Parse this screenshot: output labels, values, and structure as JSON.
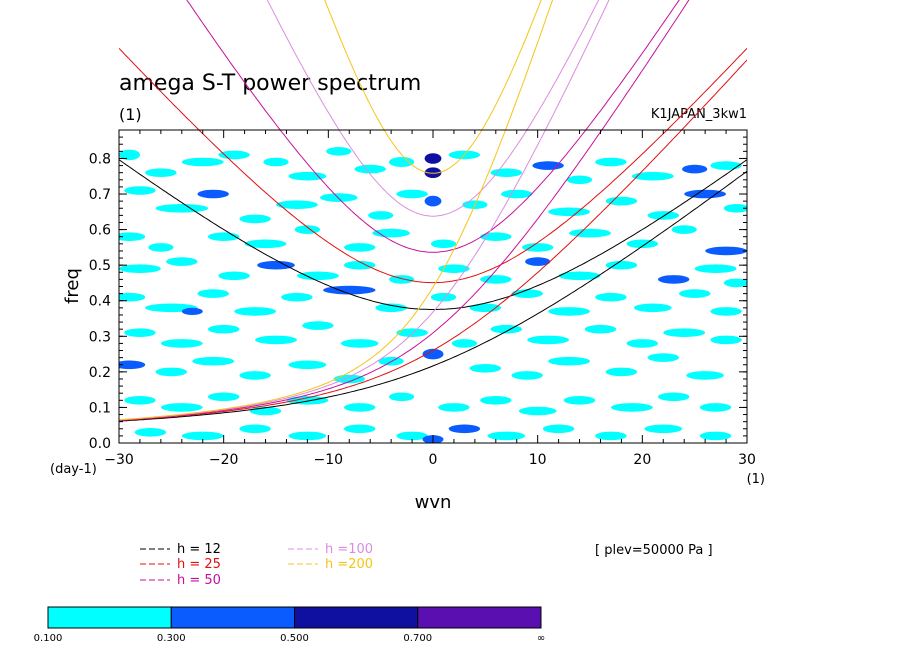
{
  "chart_data": {
    "type": "heatmap",
    "title": "amega S-T power spectrum",
    "title_units": "(1)",
    "dataset_label": "K1JAPAN_3kw1",
    "xlabel": "wvn",
    "ylabel": "freq",
    "x_units": "(1)",
    "y_units": "(day-1)",
    "xlim": [
      -30,
      30
    ],
    "ylim": [
      0,
      0.88
    ],
    "x_ticks": [
      -30,
      -20,
      -10,
      0,
      10,
      20,
      30
    ],
    "y_ticks": [
      0,
      0.1,
      0.2,
      0.3,
      0.4,
      0.5,
      0.6,
      0.7,
      0.8
    ],
    "y_tick_labels": [
      "0.0",
      "0.1",
      "0.2",
      "0.3",
      "0.4",
      "0.5",
      "0.6",
      "0.7",
      "0.8"
    ],
    "annotation": "[ plev=50000 Pa ]",
    "dispersion_curves": [
      {
        "label": "h = 12",
        "h": 12,
        "color": "#000000"
      },
      {
        "label": "h = 25",
        "h": 25,
        "color": "#e01010"
      },
      {
        "label": "h = 50",
        "h": 50,
        "color": "#c8109a"
      },
      {
        "label": "h =100",
        "h": 100,
        "color": "#dc8ce0"
      },
      {
        "label": "h =200",
        "h": 200,
        "color": "#f5c518"
      }
    ],
    "colorbar": {
      "bounds": [
        "0.100",
        "0.300",
        "0.500",
        "0.700",
        "∞"
      ],
      "colors": [
        "#00ffff",
        "#0a5cff",
        "#1010a0",
        "#5a10b0"
      ]
    },
    "contour_blobs": [
      [
        -29,
        0.81,
        1.0,
        0.015,
        0
      ],
      [
        -26,
        0.76,
        1.5,
        0.012,
        0
      ],
      [
        -22,
        0.79,
        2.0,
        0.012,
        0
      ],
      [
        -19,
        0.81,
        1.5,
        0.012,
        0
      ],
      [
        -15,
        0.79,
        1.2,
        0.012,
        0
      ],
      [
        -12,
        0.75,
        1.8,
        0.012,
        0
      ],
      [
        -9,
        0.82,
        1.2,
        0.012,
        0
      ],
      [
        -6,
        0.77,
        1.5,
        0.012,
        0
      ],
      [
        -3,
        0.79,
        1.2,
        0.014,
        0
      ],
      [
        0,
        0.8,
        0.8,
        0.015,
        2
      ],
      [
        0,
        0.76,
        0.8,
        0.015,
        2
      ],
      [
        0,
        0.68,
        0.8,
        0.015,
        1
      ],
      [
        3,
        0.81,
        1.5,
        0.012,
        0
      ],
      [
        7,
        0.76,
        1.5,
        0.012,
        0
      ],
      [
        11,
        0.78,
        1.5,
        0.012,
        1
      ],
      [
        14,
        0.74,
        1.2,
        0.012,
        0
      ],
      [
        17,
        0.79,
        1.5,
        0.012,
        0
      ],
      [
        21,
        0.75,
        2.0,
        0.012,
        0
      ],
      [
        25,
        0.77,
        1.2,
        0.012,
        1
      ],
      [
        28,
        0.78,
        1.5,
        0.012,
        0
      ],
      [
        -28,
        0.71,
        1.5,
        0.012,
        0
      ],
      [
        -24,
        0.66,
        2.5,
        0.012,
        0
      ],
      [
        -21,
        0.7,
        1.5,
        0.012,
        1
      ],
      [
        -17,
        0.63,
        1.5,
        0.012,
        0
      ],
      [
        -13,
        0.67,
        2.0,
        0.012,
        0
      ],
      [
        -9,
        0.69,
        1.8,
        0.012,
        0
      ],
      [
        -5,
        0.64,
        1.2,
        0.012,
        0
      ],
      [
        -2,
        0.7,
        1.5,
        0.012,
        0
      ],
      [
        4,
        0.67,
        1.2,
        0.012,
        0
      ],
      [
        8,
        0.7,
        1.5,
        0.012,
        0
      ],
      [
        13,
        0.65,
        2.0,
        0.012,
        0
      ],
      [
        18,
        0.68,
        1.5,
        0.012,
        0
      ],
      [
        22,
        0.64,
        1.5,
        0.012,
        0
      ],
      [
        26,
        0.7,
        2.0,
        0.012,
        1
      ],
      [
        29,
        0.66,
        1.2,
        0.012,
        0
      ],
      [
        -29,
        0.58,
        1.5,
        0.012,
        0
      ],
      [
        -26,
        0.55,
        1.2,
        0.012,
        0
      ],
      [
        -20,
        0.58,
        1.5,
        0.012,
        0
      ],
      [
        -16,
        0.56,
        2.0,
        0.012,
        0
      ],
      [
        -12,
        0.6,
        1.2,
        0.012,
        0
      ],
      [
        -7,
        0.55,
        1.5,
        0.012,
        0
      ],
      [
        -4,
        0.59,
        1.8,
        0.012,
        0
      ],
      [
        1,
        0.56,
        1.2,
        0.012,
        0
      ],
      [
        6,
        0.58,
        1.5,
        0.012,
        0
      ],
      [
        10,
        0.55,
        1.5,
        0.012,
        0
      ],
      [
        15,
        0.59,
        2.0,
        0.012,
        0
      ],
      [
        20,
        0.56,
        1.5,
        0.012,
        0
      ],
      [
        24,
        0.6,
        1.2,
        0.012,
        0
      ],
      [
        28,
        0.54,
        2.0,
        0.012,
        1
      ],
      [
        -28,
        0.49,
        2.0,
        0.012,
        0
      ],
      [
        -24,
        0.51,
        1.5,
        0.012,
        0
      ],
      [
        -19,
        0.47,
        1.5,
        0.012,
        0
      ],
      [
        -15,
        0.5,
        1.8,
        0.012,
        1
      ],
      [
        -11,
        0.47,
        2.0,
        0.012,
        0
      ],
      [
        -7,
        0.5,
        1.5,
        0.012,
        0
      ],
      [
        -3,
        0.46,
        1.2,
        0.012,
        0
      ],
      [
        2,
        0.49,
        1.5,
        0.012,
        0
      ],
      [
        6,
        0.46,
        1.5,
        0.012,
        0
      ],
      [
        10,
        0.51,
        1.2,
        0.012,
        1
      ],
      [
        14,
        0.47,
        2.0,
        0.012,
        0
      ],
      [
        18,
        0.5,
        1.5,
        0.012,
        0
      ],
      [
        23,
        0.46,
        1.5,
        0.012,
        1
      ],
      [
        27,
        0.49,
        2.0,
        0.012,
        0
      ],
      [
        29,
        0.45,
        1.2,
        0.012,
        0
      ],
      [
        -29,
        0.41,
        1.5,
        0.012,
        0
      ],
      [
        -25,
        0.38,
        2.5,
        0.012,
        0
      ],
      [
        -21,
        0.42,
        1.5,
        0.012,
        0
      ],
      [
        -17,
        0.37,
        2.0,
        0.012,
        0
      ],
      [
        -13,
        0.41,
        1.5,
        0.012,
        0
      ],
      [
        -8,
        0.43,
        2.5,
        0.012,
        1
      ],
      [
        -4,
        0.38,
        1.5,
        0.012,
        0
      ],
      [
        1,
        0.41,
        1.2,
        0.012,
        0
      ],
      [
        5,
        0.38,
        1.5,
        0.012,
        0
      ],
      [
        9,
        0.42,
        1.5,
        0.012,
        0
      ],
      [
        13,
        0.37,
        2.0,
        0.012,
        0
      ],
      [
        17,
        0.41,
        1.5,
        0.012,
        0
      ],
      [
        21,
        0.38,
        1.8,
        0.012,
        0
      ],
      [
        25,
        0.42,
        1.5,
        0.012,
        0
      ],
      [
        28,
        0.37,
        1.5,
        0.012,
        0
      ],
      [
        -23,
        0.37,
        1.0,
        0.01,
        1
      ],
      [
        -28,
        0.31,
        1.5,
        0.012,
        0
      ],
      [
        -24,
        0.28,
        2.0,
        0.012,
        0
      ],
      [
        -20,
        0.32,
        1.5,
        0.012,
        0
      ],
      [
        -15,
        0.29,
        2.0,
        0.012,
        0
      ],
      [
        -11,
        0.33,
        1.5,
        0.012,
        0
      ],
      [
        -7,
        0.28,
        1.8,
        0.012,
        0
      ],
      [
        -2,
        0.31,
        1.5,
        0.012,
        0
      ],
      [
        3,
        0.28,
        1.2,
        0.012,
        0
      ],
      [
        7,
        0.32,
        1.5,
        0.012,
        0
      ],
      [
        11,
        0.29,
        2.0,
        0.012,
        0
      ],
      [
        16,
        0.32,
        1.5,
        0.012,
        0
      ],
      [
        20,
        0.28,
        1.5,
        0.012,
        0
      ],
      [
        24,
        0.31,
        2.0,
        0.012,
        0
      ],
      [
        28,
        0.29,
        1.5,
        0.012,
        0
      ],
      [
        -29,
        0.22,
        1.5,
        0.012,
        1
      ],
      [
        -25,
        0.2,
        1.5,
        0.012,
        0
      ],
      [
        -21,
        0.23,
        2.0,
        0.012,
        0
      ],
      [
        -17,
        0.19,
        1.5,
        0.012,
        0
      ],
      [
        -12,
        0.22,
        1.8,
        0.012,
        0
      ],
      [
        -8,
        0.18,
        1.5,
        0.012,
        0
      ],
      [
        -4,
        0.23,
        1.2,
        0.012,
        0
      ],
      [
        0,
        0.25,
        1.0,
        0.015,
        1
      ],
      [
        5,
        0.21,
        1.5,
        0.012,
        0
      ],
      [
        9,
        0.19,
        1.5,
        0.012,
        0
      ],
      [
        13,
        0.23,
        2.0,
        0.012,
        0
      ],
      [
        18,
        0.2,
        1.5,
        0.012,
        0
      ],
      [
        22,
        0.24,
        1.5,
        0.012,
        0
      ],
      [
        26,
        0.19,
        1.8,
        0.012,
        0
      ],
      [
        -28,
        0.12,
        1.5,
        0.012,
        0
      ],
      [
        -24,
        0.1,
        2.0,
        0.012,
        0
      ],
      [
        -20,
        0.13,
        1.5,
        0.012,
        0
      ],
      [
        -16,
        0.09,
        1.5,
        0.012,
        0
      ],
      [
        -12,
        0.12,
        2.0,
        0.012,
        0
      ],
      [
        -7,
        0.1,
        1.5,
        0.012,
        0
      ],
      [
        -3,
        0.13,
        1.2,
        0.012,
        0
      ],
      [
        2,
        0.1,
        1.5,
        0.012,
        0
      ],
      [
        6,
        0.12,
        1.5,
        0.012,
        0
      ],
      [
        10,
        0.09,
        1.8,
        0.012,
        0
      ],
      [
        14,
        0.12,
        1.5,
        0.012,
        0
      ],
      [
        19,
        0.1,
        2.0,
        0.012,
        0
      ],
      [
        23,
        0.13,
        1.5,
        0.012,
        0
      ],
      [
        27,
        0.1,
        1.5,
        0.012,
        0
      ],
      [
        -27,
        0.03,
        1.5,
        0.012,
        0
      ],
      [
        -22,
        0.02,
        2.0,
        0.012,
        0
      ],
      [
        -17,
        0.04,
        1.5,
        0.012,
        0
      ],
      [
        -12,
        0.02,
        1.8,
        0.012,
        0
      ],
      [
        -7,
        0.04,
        1.5,
        0.012,
        0
      ],
      [
        -2,
        0.02,
        1.5,
        0.012,
        0
      ],
      [
        0,
        0.01,
        1.0,
        0.012,
        1
      ],
      [
        3,
        0.04,
        1.5,
        0.012,
        1
      ],
      [
        7,
        0.02,
        1.8,
        0.012,
        0
      ],
      [
        12,
        0.04,
        1.5,
        0.012,
        0
      ],
      [
        17,
        0.02,
        1.5,
        0.012,
        0
      ],
      [
        22,
        0.04,
        1.8,
        0.012,
        0
      ],
      [
        27,
        0.02,
        1.5,
        0.012,
        0
      ]
    ]
  }
}
